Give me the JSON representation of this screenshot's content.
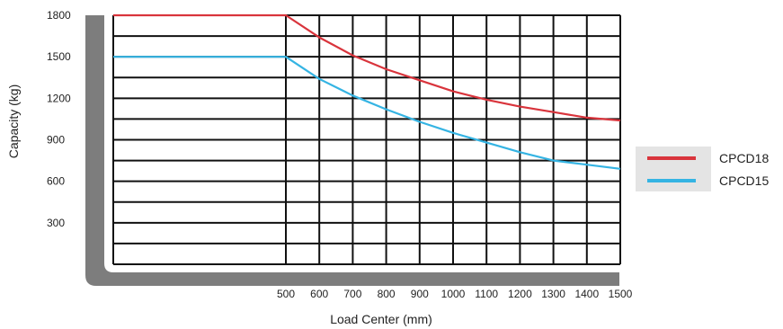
{
  "chart_data": {
    "type": "line",
    "xlabel": "Load Center (mm)",
    "ylabel": "Capacity (kg)",
    "x_ticks": [
      500,
      600,
      700,
      800,
      900,
      1000,
      1100,
      1200,
      1300,
      1400,
      1500
    ],
    "x_tick_labels": [
      "500",
      "600",
      "700",
      "800",
      "900",
      "1000",
      "1100",
      "1200",
      "1300",
      "1400",
      "1500"
    ],
    "y_ticks": [
      300,
      600,
      900,
      1200,
      1500,
      1800
    ],
    "y_tick_labels": [
      "300",
      "600",
      "900",
      "1200",
      "1500",
      "1800"
    ],
    "ylim": [
      0,
      1800
    ],
    "grid": true,
    "legend_position": "right",
    "series": [
      {
        "name": "CPCD18",
        "color": "#d9343c",
        "x": [
          0,
          500,
          600,
          700,
          800,
          900,
          1000,
          1100,
          1200,
          1300,
          1400,
          1500
        ],
        "y": [
          1800,
          1800,
          1640,
          1510,
          1410,
          1330,
          1250,
          1190,
          1140,
          1100,
          1060,
          1040
        ]
      },
      {
        "name": "CPCD15",
        "color": "#35b4e3",
        "x": [
          0,
          500,
          600,
          700,
          800,
          900,
          1000,
          1100,
          1200,
          1300,
          1400,
          1500
        ],
        "y": [
          1500,
          1500,
          1340,
          1220,
          1120,
          1030,
          950,
          880,
          810,
          750,
          720,
          690
        ]
      }
    ]
  }
}
